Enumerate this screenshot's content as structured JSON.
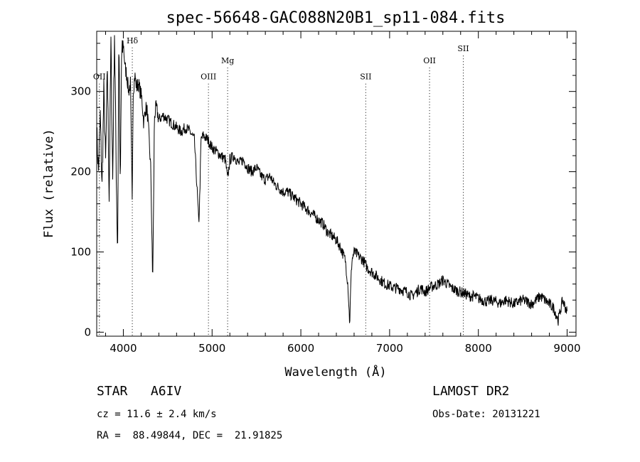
{
  "chart_data": {
    "type": "line",
    "title": "spec-56648-GAC088N20B1_sp11-084.fits",
    "xlabel": "Wavelength (Å)",
    "ylabel": "Flux (relative)",
    "xlim": [
      3700,
      9100
    ],
    "ylim": [
      -5,
      375
    ],
    "xticks": [
      {
        "v": 4000,
        "label": "4000"
      },
      {
        "v": 5000,
        "label": "5000"
      },
      {
        "v": 6000,
        "label": "6000"
      },
      {
        "v": 7000,
        "label": "7000"
      },
      {
        "v": 8000,
        "label": "8000"
      },
      {
        "v": 9000,
        "label": "9000"
      }
    ],
    "yticks": [
      {
        "v": 0,
        "label": "0"
      },
      {
        "v": 100,
        "label": "100"
      },
      {
        "v": 200,
        "label": "200"
      },
      {
        "v": 300,
        "label": "300"
      }
    ],
    "grid": false,
    "series": [
      {
        "color": "#000000",
        "x": [
          3700,
          3720,
          3740,
          3760,
          3780,
          3800,
          3820,
          3840,
          3860,
          3880,
          3900,
          3920,
          3935,
          3950,
          3965,
          3980,
          4000,
          4020,
          4040,
          4060,
          4080,
          4100,
          4110,
          4130,
          4150,
          4170,
          4190,
          4210,
          4230,
          4250,
          4270,
          4290,
          4310,
          4330,
          4340,
          4350,
          4370,
          4400,
          4450,
          4500,
          4550,
          4600,
          4650,
          4700,
          4750,
          4800,
          4830,
          4850,
          4861,
          4875,
          4900,
          4950,
          5000,
          5050,
          5100,
          5150,
          5175,
          5200,
          5250,
          5300,
          5350,
          5400,
          5450,
          5500,
          5550,
          5600,
          5650,
          5700,
          5750,
          5800,
          5850,
          5900,
          5950,
          6000,
          6050,
          6100,
          6150,
          6200,
          6250,
          6300,
          6350,
          6400,
          6450,
          6500,
          6530,
          6550,
          6563,
          6575,
          6600,
          6650,
          6700,
          6750,
          6800,
          6850,
          6900,
          6950,
          7000,
          7050,
          7100,
          7150,
          7200,
          7250,
          7300,
          7350,
          7400,
          7450,
          7500,
          7550,
          7600,
          7650,
          7700,
          7750,
          7800,
          7850,
          7900,
          7950,
          8000,
          8050,
          8100,
          8150,
          8200,
          8250,
          8300,
          8350,
          8400,
          8450,
          8500,
          8550,
          8600,
          8650,
          8700,
          8750,
          8800,
          8850,
          8900,
          8950,
          9000
        ],
        "y": [
          250,
          200,
          270,
          180,
          300,
          210,
          330,
          170,
          360,
          190,
          375,
          200,
          95,
          380,
          170,
          340,
          360,
          330,
          320,
          300,
          310,
          160,
          300,
          320,
          305,
          310,
          300,
          290,
          260,
          280,
          275,
          240,
          200,
          60,
          150,
          270,
          280,
          265,
          270,
          265,
          260,
          255,
          250,
          255,
          250,
          240,
          180,
          135,
          170,
          240,
          245,
          240,
          230,
          225,
          220,
          215,
          190,
          215,
          220,
          210,
          215,
          205,
          200,
          205,
          195,
          190,
          195,
          185,
          180,
          175,
          175,
          170,
          165,
          160,
          155,
          150,
          145,
          140,
          135,
          125,
          120,
          115,
          105,
          90,
          60,
          10,
          60,
          90,
          100,
          95,
          90,
          80,
          75,
          70,
          65,
          60,
          58,
          55,
          55,
          52,
          50,
          45,
          50,
          55,
          50,
          55,
          58,
          60,
          65,
          60,
          55,
          52,
          50,
          48,
          45,
          45,
          42,
          40,
          38,
          40,
          38,
          36,
          40,
          38,
          35,
          38,
          40,
          38,
          35,
          40,
          45,
          40,
          35,
          30,
          15,
          40,
          25
        ]
      }
    ],
    "lines": [
      {
        "x": 3730,
        "label": "OII",
        "label_y": 315
      },
      {
        "x": 4101,
        "label": "Hδ",
        "label_y": 360
      },
      {
        "x": 4959,
        "label": "OIII",
        "label_y": 315
      },
      {
        "x": 5175,
        "label": "Mg",
        "label_y": 335
      },
      {
        "x": 6731,
        "label": "SII",
        "label_y": 315
      },
      {
        "x": 7450,
        "label": "OII",
        "label_y": 335
      },
      {
        "x": 7830,
        "label": "SII",
        "label_y": 350
      }
    ]
  },
  "footer": {
    "class_line": "STAR   A6IV",
    "survey": "LAMOST DR2",
    "cz": "cz = 11.6 ± 2.4 km/s",
    "obs_date": "Obs-Date: 20131221",
    "coords": "RA =  88.49844, DEC =  21.91825"
  }
}
